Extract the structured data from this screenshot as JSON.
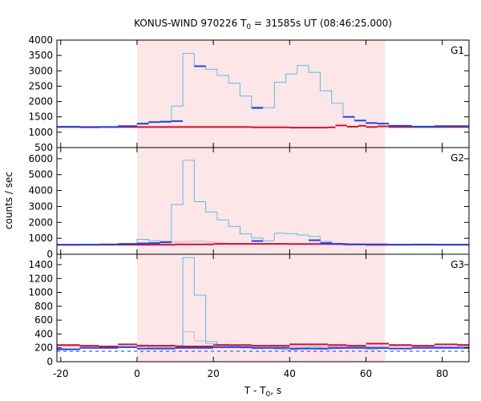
{
  "chart_data": {
    "type": "line",
    "title": {
      "prefix": "KONUS-WIND 970226 T",
      "sub": "0",
      "suffix": " = 31585s UT (08:46:25.000)"
    },
    "xlabel": {
      "prefix": "T - T",
      "sub": "0",
      "suffix": ", s"
    },
    "ylabel": "counts / sec",
    "xlim": [
      -21,
      87
    ],
    "xticks": [
      -20,
      0,
      20,
      40,
      60,
      80
    ],
    "highlight_interval": [
      0,
      65
    ],
    "colors": {
      "highlight": "#fde6e8",
      "total": "#5bbcec",
      "background_blue": "#2244dd",
      "background_red": "#cc1133",
      "fit_pink": "#f2a0d0",
      "dashed": "#2233cc"
    },
    "panels": [
      {
        "label": "G1",
        "ylim": [
          500,
          4000
        ],
        "yticks": [
          500,
          1000,
          1500,
          2000,
          2500,
          3000,
          3500,
          4000
        ],
        "series": [
          {
            "role": "total",
            "edges": [
              -21,
              0,
              3,
              6,
              9,
              12,
              15,
              18,
              21,
              24,
              27,
              30,
              33,
              36,
              39,
              42,
              45,
              48,
              51,
              54,
              57,
              60,
              63,
              66,
              87
            ],
            "values": [
              1180,
              1260,
              1330,
              1360,
              1850,
              3570,
              3150,
              3050,
              2850,
              2600,
              2180,
              1820,
              1800,
              2630,
              2900,
              3170,
              2950,
              2350,
              1940,
              1500,
              1380,
              1300,
              1280,
              1200
            ]
          },
          {
            "role": "background_blue",
            "edges": [
              -21,
              -15,
              -10,
              -5,
              0,
              3,
              6,
              9,
              12,
              15,
              18,
              21,
              24,
              27,
              30,
              33,
              36,
              39,
              42,
              45,
              48,
              51,
              54,
              57,
              60,
              63,
              66,
              72,
              78,
              87
            ],
            "values": [
              1180,
              1160,
              1170,
              1200,
              1280,
              1330,
              1340,
              1360,
              null,
              3150,
              null,
              null,
              null,
              null,
              1790,
              null,
              null,
              null,
              null,
              null,
              null,
              null,
              1500,
              1380,
              1300,
              1280,
              1210,
              1180,
              1200
            ]
          },
          {
            "role": "background_red",
            "edges": [
              -21,
              0,
              10,
              20,
              30,
              40,
              50,
              52,
              55,
              58,
              60,
              63,
              66,
              87
            ],
            "values": [
              1170,
              1170,
              1170,
              1170,
              1160,
              1150,
              1160,
              1220,
              1180,
              1210,
              1170,
              1190,
              1170
            ]
          }
        ]
      },
      {
        "label": "G2",
        "ylim": [
          0,
          6700
        ],
        "yticks": [
          0,
          1000,
          2000,
          3000,
          4000,
          5000,
          6000
        ],
        "series": [
          {
            "role": "total",
            "edges": [
              -21,
              0,
              3,
              6,
              9,
              12,
              15,
              18,
              21,
              24,
              27,
              30,
              33,
              36,
              39,
              42,
              45,
              48,
              51,
              54,
              57,
              60,
              63,
              66,
              87
            ],
            "values": [
              580,
              930,
              850,
              800,
              3120,
              5900,
              3300,
              2650,
              2150,
              1750,
              1280,
              1020,
              850,
              1320,
              1290,
              1210,
              1120,
              800,
              680,
              640,
              610,
              600,
              590,
              580
            ]
          },
          {
            "role": "background_blue",
            "edges": [
              -21,
              -15,
              -10,
              -5,
              0,
              3,
              6,
              9,
              30,
              33,
              45,
              48,
              51,
              54,
              60,
              66,
              72,
              78,
              87
            ],
            "values": [
              590,
              600,
              620,
              650,
              680,
              700,
              760,
              null,
              830,
              null,
              880,
              700,
              650,
              620,
              590,
              600,
              610,
              600
            ]
          },
          {
            "role": "background_red",
            "edges": [
              -21,
              0,
              10,
              20,
              30,
              40,
              55,
              66,
              87
            ],
            "values": [
              600,
              600,
              620,
              650,
              650,
              640,
              620,
              600
            ]
          },
          {
            "role": "fit_pink",
            "edges": [
              -21,
              0,
              3,
              6,
              9,
              12,
              15,
              18,
              21,
              24,
              30,
              40,
              50,
              66,
              87
            ],
            "values": [
              600,
              600,
              650,
              700,
              760,
              800,
              820,
              760,
              700,
              660,
              640,
              630,
              610,
              600
            ]
          }
        ]
      },
      {
        "label": "G3",
        "ylim": [
          0,
          1550
        ],
        "yticks": [
          0,
          200,
          400,
          600,
          800,
          1000,
          1200,
          1400
        ],
        "series": [
          {
            "role": "total",
            "edges": [
              -21,
              -18,
              -15,
              -10,
              -5,
              0,
              3,
              6,
              9,
              12,
              15,
              18,
              21,
              24,
              27,
              30,
              33,
              36,
              39,
              42,
              45,
              48,
              51,
              54,
              57,
              60,
              63,
              66,
              72,
              78,
              84,
              87
            ],
            "values": [
              170,
              180,
              200,
              210,
              220,
              240,
              200,
              200,
              200,
              1500,
              960,
              290,
              250,
              220,
              200,
              190,
              200,
              180,
              170,
              200,
              220,
              180,
              190,
              200,
              220,
              180,
              190,
              190,
              200,
              210,
              250
            ]
          },
          {
            "role": "fit_pink",
            "edges": [
              -21,
              0,
              6,
              9,
              12,
              15,
              18,
              21,
              30,
              40,
              50,
              60,
              66,
              87
            ],
            "values": [
              220,
              220,
              220,
              240,
              430,
              300,
              260,
              240,
              230,
              220,
              220,
              220,
              220
            ]
          },
          {
            "role": "background_red",
            "edges": [
              -21,
              -15,
              -10,
              -5,
              0,
              10,
              20,
              30,
              40,
              50,
              55,
              60,
              66,
              72,
              78,
              84,
              87
            ],
            "values": [
              240,
              230,
              220,
              250,
              230,
              220,
              240,
              230,
              250,
              240,
              230,
              260,
              240,
              230,
              250,
              240
            ]
          },
          {
            "role": "background_blue",
            "edges": [
              -21,
              -15,
              -5,
              0,
              10,
              20,
              30,
              40,
              50,
              60,
              66,
              72,
              87
            ],
            "values": [
              180,
              200,
              210,
              190,
              200,
              210,
              200,
              190,
              200,
              200,
              190,
              200
            ]
          },
          {
            "role": "dashed",
            "edges": [
              -21,
              87
            ],
            "values": [
              150
            ]
          }
        ]
      }
    ]
  }
}
